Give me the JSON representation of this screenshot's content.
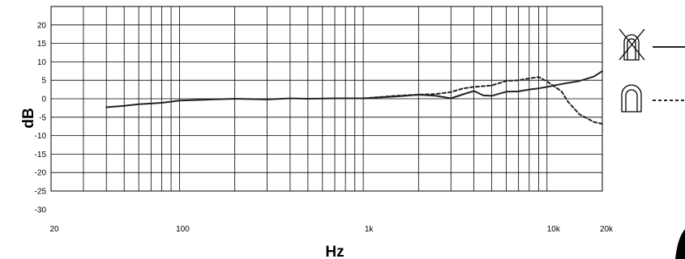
{
  "chart_data": {
    "type": "line",
    "xlabel": "Hz",
    "ylabel": "dB",
    "x_scale": "log",
    "xlim": [
      20,
      20000
    ],
    "ylim": [
      -30,
      30
    ],
    "x_tick_labels": [
      "20",
      "100",
      "1k",
      "10k",
      "20k"
    ],
    "x_tick_values": [
      20,
      100,
      1000,
      10000,
      20000
    ],
    "y_tick_values": [
      20,
      15,
      10,
      5,
      0,
      -5,
      -10,
      -15,
      -20,
      -25,
      -30
    ],
    "y_tick_labels": [
      "20",
      "15",
      "10",
      "5",
      "0",
      "-5",
      "-10",
      "-15",
      "-20",
      "-25",
      "-30"
    ],
    "grid": true,
    "legend_position": "right",
    "series": [
      {
        "line_style": "solid",
        "legend_icon": "crossed-out-windscreen-icon",
        "x": [
          40,
          50,
          60,
          70,
          80,
          90,
          100,
          150,
          200,
          300,
          400,
          500,
          700,
          1000,
          1500,
          2000,
          2500,
          3000,
          3500,
          4000,
          4500,
          5000,
          6000,
          7000,
          8000,
          9000,
          10000,
          12000,
          15000,
          18000,
          20000
        ],
        "y": [
          -2.3,
          -1.9,
          -1.5,
          -1.3,
          -1.1,
          -0.8,
          -0.5,
          -0.2,
          0,
          -0.2,
          0.1,
          0,
          0.1,
          0.1,
          0.6,
          1.1,
          0.8,
          0.1,
          1.2,
          2.1,
          0.9,
          0.8,
          1.9,
          2.0,
          2.5,
          2.8,
          3.2,
          4.0,
          4.8,
          6.0,
          7.5
        ]
      },
      {
        "line_style": "dashed",
        "legend_icon": "windscreen-icon",
        "x": [
          1000,
          1500,
          2000,
          2500,
          3000,
          3500,
          4000,
          5000,
          6000,
          7000,
          8000,
          9000,
          10000,
          12000,
          13000,
          15000,
          18000,
          20000
        ],
        "y": [
          0.1,
          0.8,
          1.1,
          1.3,
          1.8,
          2.8,
          3.2,
          3.6,
          4.8,
          5.0,
          5.5,
          5.9,
          4.7,
          2.0,
          -0.8,
          -4.2,
          -6.3,
          -6.8
        ]
      }
    ],
    "colors": {
      "line": "#222222",
      "grid": "#000000",
      "background": "#ffffff"
    }
  }
}
